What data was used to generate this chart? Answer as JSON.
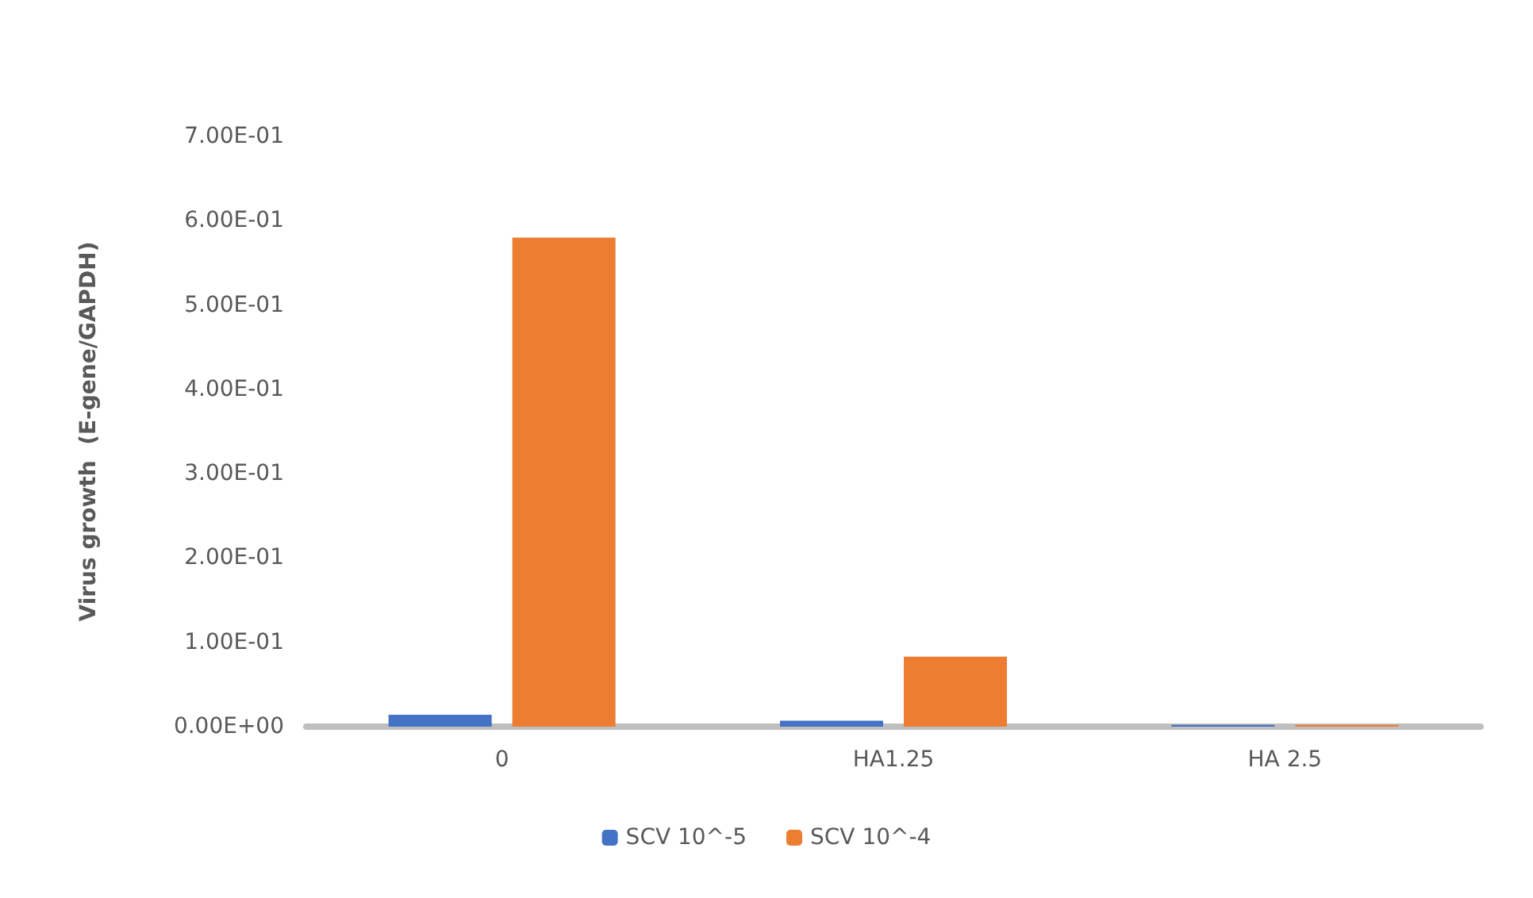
{
  "chart_data": {
    "type": "bar",
    "ylabel": "Virus growth  (E-gene/GAPDH)",
    "categories": [
      "0",
      "HA1.25",
      "HA 2.5"
    ],
    "series": [
      {
        "name": "SCV 10^-5",
        "color": "#4472c4",
        "values": [
          0.014,
          0.007,
          0.002
        ]
      },
      {
        "name": "SCV 10^-4",
        "color": "#ed7d31",
        "values": [
          0.58,
          0.083,
          0.002
        ]
      }
    ],
    "ylim": [
      0,
      0.7
    ],
    "yticks": [
      {
        "value": 0,
        "label": "0.00E+00"
      },
      {
        "value": 0.1,
        "label": "1.00E-01"
      },
      {
        "value": 0.2,
        "label": "2.00E-01"
      },
      {
        "value": 0.3,
        "label": "3.00E-01"
      },
      {
        "value": 0.4,
        "label": "4.00E-01"
      },
      {
        "value": 0.5,
        "label": "5.00E-01"
      },
      {
        "value": 0.6,
        "label": "6.00E-01"
      },
      {
        "value": 0.7,
        "label": "7.00E-01"
      }
    ],
    "grid": false,
    "legend": "bottom"
  }
}
